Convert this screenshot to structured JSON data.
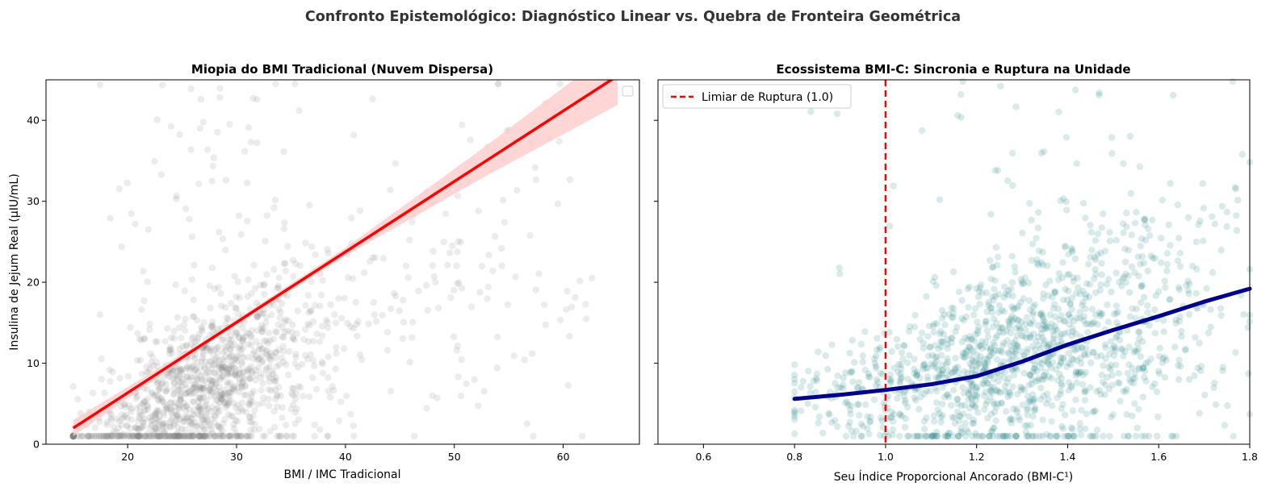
{
  "figure": {
    "suptitle": "Confronto Epistemológico: Diagnóstico Linear vs. Quebra de Fronteira Geométrica"
  },
  "chart_data": [
    {
      "type": "scatter",
      "title": "Miopia do BMI Tradicional (Nuvem Dispersa)",
      "xlabel": "BMI / IMC Tradicional",
      "ylabel": "Insulina de Jejum Real (µIU/mL)",
      "xlim": [
        12.5,
        67
      ],
      "ylim": [
        0,
        45
      ],
      "xticks": [
        20,
        30,
        40,
        50,
        60
      ],
      "yticks": [
        0,
        10,
        20,
        30,
        40
      ],
      "grid": false,
      "legend": {
        "placement": "top-right",
        "entries": []
      },
      "scatter": {
        "color": "#808080",
        "opacity": 0.15,
        "n_points": 1400,
        "description_stats": {
          "x_center": 27,
          "x_range": [
            15,
            65
          ],
          "y_range": [
            1,
            45
          ]
        }
      },
      "regression": {
        "color": "#ff0000",
        "x": [
          15,
          65
        ],
        "y": [
          2.0,
          45.5
        ],
        "ci_color": "#ffcccc",
        "ci_halfwidth": [
          1.0,
          0.3,
          0.5,
          1.8,
          3.6
        ]
      }
    },
    {
      "type": "scatter",
      "title": "Ecossistema BMI-C: Sincronia e Ruptura na Unidade",
      "xlabel": "Seu Índice Proporcional Ancorado (BMI-C¹)",
      "ylabel": "",
      "xlim": [
        0.5,
        1.8
      ],
      "ylim": [
        0,
        45
      ],
      "xticks": [
        0.6,
        0.8,
        1.0,
        1.2,
        1.4,
        1.6,
        1.8
      ],
      "yticks": [
        0,
        10,
        20,
        30,
        40
      ],
      "grid": false,
      "legend": {
        "placement": "top-left",
        "entries": [
          {
            "label": "Limiar de Ruptura (1.0)",
            "style": "dashed",
            "color": "#ff0000"
          }
        ]
      },
      "scatter": {
        "color": "#2e8b8b",
        "opacity": 0.18,
        "n_points": 1400,
        "description_stats": {
          "x_range": [
            0.8,
            1.8
          ],
          "y_range": [
            1,
            45
          ]
        }
      },
      "threshold": {
        "x": 1.0,
        "color": "#ff0000"
      },
      "smooth_curve": {
        "color": "#00008b",
        "x": [
          0.8,
          0.9,
          1.0,
          1.1,
          1.2,
          1.3,
          1.4,
          1.5,
          1.6,
          1.7,
          1.8
        ],
        "y": [
          5.6,
          6.1,
          6.7,
          7.4,
          8.4,
          10.2,
          12.3,
          14.1,
          15.8,
          17.6,
          19.2
        ]
      }
    }
  ]
}
